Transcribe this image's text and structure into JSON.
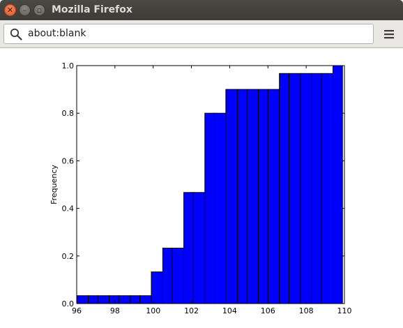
{
  "window": {
    "title": "Mozilla Firefox"
  },
  "urlbar": {
    "value": "about:blank"
  },
  "icons": {
    "close": "close-icon",
    "minimize": "minimize-icon",
    "maximize": "maximize-icon",
    "search": "search-icon",
    "menu": "hamburger-menu-icon"
  },
  "colors": {
    "bar_fill": "#0000ff",
    "bar_edge": "#000000",
    "titlebar": "#3c3b37",
    "close_button": "#e05a2a"
  },
  "chart_data": {
    "type": "bar",
    "title": "",
    "xlabel": "",
    "ylabel": "Frequency",
    "xlim": [
      96,
      110
    ],
    "ylim": [
      0,
      1.0
    ],
    "grid": false,
    "x_ticks": [
      "96",
      "98",
      "100",
      "102",
      "104",
      "106",
      "108",
      "110"
    ],
    "y_ticks": [
      "0.0",
      "0.2",
      "0.4",
      "0.6",
      "0.8",
      "1.0"
    ],
    "bin_edges": [
      96,
      96.6,
      97.1,
      97.7,
      98.2,
      98.8,
      99.3,
      99.9,
      100.5,
      101.0,
      101.6,
      102.1,
      102.7,
      103.2,
      103.8,
      104.4,
      104.9,
      105.5,
      106.0,
      106.6,
      107.1,
      107.7,
      108.3,
      108.8,
      109.4,
      109.9
    ],
    "values": [
      0.033,
      0.033,
      0.033,
      0.033,
      0.033,
      0.033,
      0.033,
      0.133,
      0.233,
      0.233,
      0.467,
      0.467,
      0.8,
      0.8,
      0.9,
      0.9,
      0.9,
      0.9,
      0.9,
      0.967,
      0.967,
      0.967,
      0.967,
      0.967,
      1.0
    ]
  }
}
